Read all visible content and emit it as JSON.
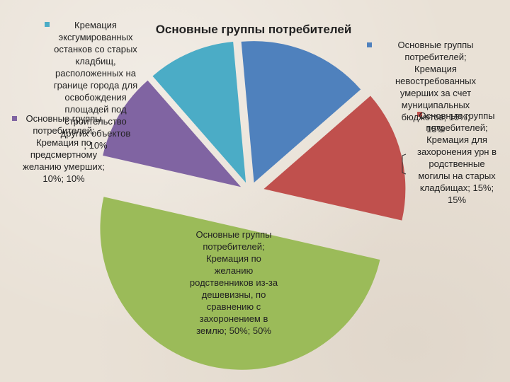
{
  "chart_data": {
    "type": "pie",
    "title": "Основные группы потребителей",
    "slices": [
      {
        "legend": "Основные группы потребителей; Кремация невостребованных умерших за счет муниципальных бюджетов; 15%; 15%",
        "value": 15,
        "color": "#4f81bd"
      },
      {
        "legend": "Основные группы потребителей; Кремация для захоронения урн в родственные могилы на старых кладбищах; 15%; 15%",
        "value": 15,
        "color": "#c0504d"
      },
      {
        "legend": "Основные группы потребителей; Кремация по желанию родственников из-за дешевизны, по сравнению с захоронением в землю; 50%; 50%",
        "value": 50,
        "color": "#9bbb59"
      },
      {
        "legend": "Основные группы потребителей; Кремация по предсмертному желанию умерших; 10%; 10%",
        "value": 10,
        "color": "#8064a2"
      },
      {
        "legend": "Кремация эксгумированных останков со старых кладбищ, расположенных на границе города для освобождения площадей под строительство других объектов; 10%",
        "value": 10,
        "color": "#4bacc6"
      }
    ],
    "label_lines": {
      "blue": [
        "Основные группы",
        "потребителей;",
        "Кремация",
        "невостребованных",
        "умерших за счет",
        "муниципальных",
        "бюджетов; 15%;",
        "15%"
      ],
      "red": [
        "Основные группы",
        "потребителей;",
        "Кремация для",
        "захоронения урн в",
        "родственные",
        "могилы на старых",
        "кладбищах; 15%;",
        "15%"
      ],
      "green": [
        "Основные группы",
        "потребителей;",
        "Кремация по",
        "желанию",
        "родственников из-за",
        "дешевизны, по",
        "сравнению с",
        "захоронением в",
        "землю; 50%; 50%"
      ],
      "purple": [
        "Основные группы",
        "потребителей;",
        "Кремация по",
        "предсмертному",
        "желанию умерших;",
        "10%; 10%"
      ],
      "teal": [
        "Кремация",
        "эксгумированных",
        "останков со старых",
        "кладбищ,",
        "расположенных на",
        "границе города для",
        "освобождения",
        "площадей под",
        "строительство",
        "других объектов",
        "; 10%"
      ]
    }
  }
}
